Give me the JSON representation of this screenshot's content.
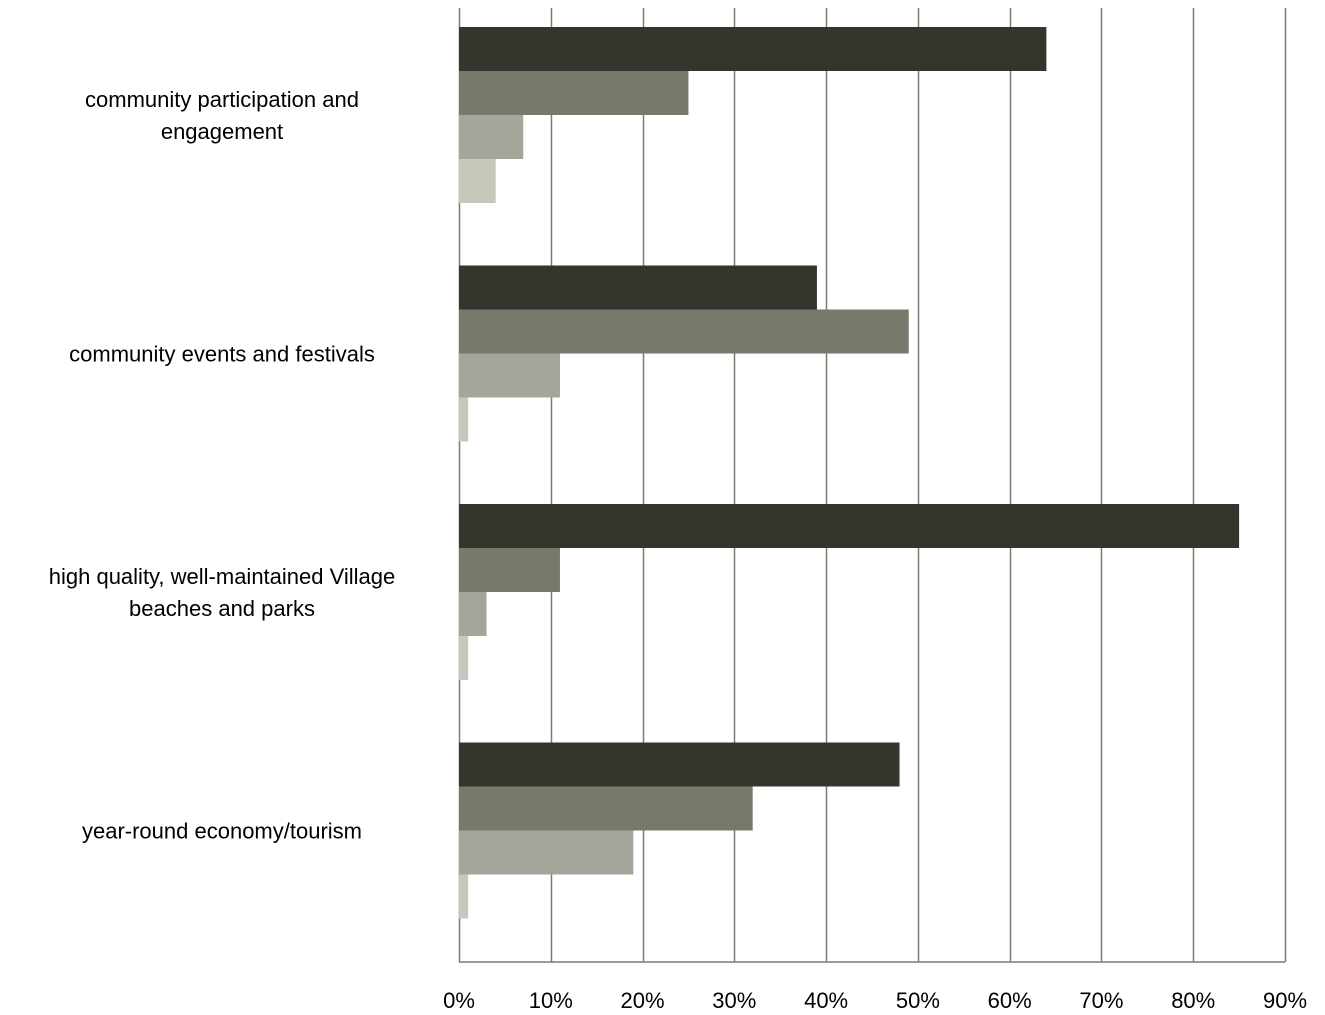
{
  "chart_data": {
    "type": "bar",
    "orientation": "horizontal",
    "title": "",
    "xlabel": "",
    "ylabel": "",
    "categories": [
      [
        "community participation and",
        "engagement"
      ],
      [
        "community events and festivals"
      ],
      [
        "high quality, well-maintained Village",
        "beaches and parks"
      ],
      [
        "year-round economy/tourism"
      ]
    ],
    "series": [
      {
        "color": "#34352c",
        "values": [
          64,
          39,
          85,
          48
        ]
      },
      {
        "color": "#77796a",
        "values": [
          25,
          49,
          11,
          32
        ]
      },
      {
        "color": "#a5a69b",
        "values": [
          7,
          11,
          3,
          19
        ]
      },
      {
        "color": "#c6c8bb",
        "values": [
          4,
          1,
          1,
          1
        ]
      }
    ],
    "xlim": [
      0,
      90
    ],
    "xticks": [
      0,
      10,
      20,
      30,
      40,
      50,
      60,
      70,
      80,
      90
    ],
    "xtick_labels": [
      "0%",
      "10%",
      "20%",
      "30%",
      "40%",
      "50%",
      "60%",
      "70%",
      "80%",
      "90%"
    ],
    "grid": true,
    "legend": false,
    "gridline_color": "#7a7a72"
  }
}
